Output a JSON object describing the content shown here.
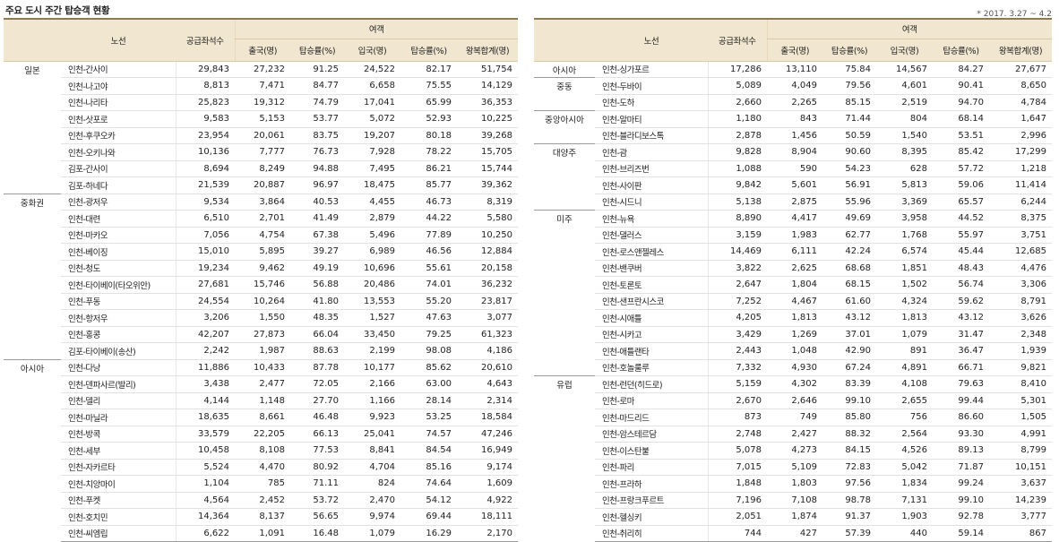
{
  "title": "주요 도시 주간 탑승객 현황",
  "period": "* 2017. 3.27 ~ 4.2",
  "headers": {
    "route": "노선",
    "capacity": "공급좌석수",
    "passengers": "여객",
    "out_pax": "출국(명)",
    "out_rate": "탑승률(%)",
    "in_pax": "입국(명)",
    "in_rate": "탑승률(%)",
    "total": "왕복합계(명)"
  },
  "left_groups": [
    {
      "region": "일본",
      "rows": [
        [
          "인천-간사이",
          "29,843",
          "27,232",
          "91.25",
          "24,522",
          "82.17",
          "51,754"
        ],
        [
          "인천-나고야",
          "8,813",
          "7,471",
          "84.77",
          "6,658",
          "75.55",
          "14,129"
        ],
        [
          "인천-나리타",
          "25,823",
          "19,312",
          "74.79",
          "17,041",
          "65.99",
          "36,353"
        ],
        [
          "인천-삿포로",
          "9,583",
          "5,153",
          "53.77",
          "5,072",
          "52.93",
          "10,225"
        ],
        [
          "인천-후쿠오카",
          "23,954",
          "20,061",
          "83.75",
          "19,207",
          "80.18",
          "39,268"
        ],
        [
          "인천-오키나와",
          "10,136",
          "7,777",
          "76.73",
          "7,928",
          "78.22",
          "15,705"
        ],
        [
          "김포-간사이",
          "8,694",
          "8,249",
          "94.88",
          "7,495",
          "86.21",
          "15,744"
        ],
        [
          "김포-하네다",
          "21,539",
          "20,887",
          "96.97",
          "18,475",
          "85.77",
          "39,362"
        ]
      ]
    },
    {
      "region": "중화권",
      "rows": [
        [
          "인천-광저우",
          "9,534",
          "3,864",
          "40.53",
          "4,455",
          "46.73",
          "8,319"
        ],
        [
          "인천-대련",
          "6,510",
          "2,701",
          "41.49",
          "2,879",
          "44.22",
          "5,580"
        ],
        [
          "인천-마카오",
          "7,056",
          "4,754",
          "67.38",
          "5,496",
          "77.89",
          "10,250"
        ],
        [
          "인천-베이징",
          "15,010",
          "5,895",
          "39.27",
          "6,989",
          "46.56",
          "12,884"
        ],
        [
          "인천-청도",
          "19,234",
          "9,462",
          "49.19",
          "10,696",
          "55.61",
          "20,158"
        ],
        [
          "인천-타이베이(타오위안)",
          "27,681",
          "15,746",
          "56.88",
          "20,486",
          "74.01",
          "36,232"
        ],
        [
          "인천-푸동",
          "24,554",
          "10,264",
          "41.80",
          "13,553",
          "55.20",
          "23,817"
        ],
        [
          "인천-항저우",
          "3,206",
          "1,550",
          "48.35",
          "1,527",
          "47.63",
          "3,077"
        ],
        [
          "인천-홍콩",
          "42,207",
          "27,873",
          "66.04",
          "33,450",
          "79.25",
          "61,323"
        ],
        [
          "김포-타이베이(송산)",
          "2,242",
          "1,987",
          "88.63",
          "2,199",
          "98.08",
          "4,186"
        ]
      ]
    },
    {
      "region": "아시아",
      "rows": [
        [
          "인천-다낭",
          "11,886",
          "10,433",
          "87.78",
          "10,177",
          "85.62",
          "20,610"
        ],
        [
          "인천-덴파사르(발리)",
          "3,438",
          "2,477",
          "72.05",
          "2,166",
          "63.00",
          "4,643"
        ],
        [
          "인천-델리",
          "4,144",
          "1,148",
          "27.70",
          "1,166",
          "28.14",
          "2,314"
        ],
        [
          "인천-마닐라",
          "18,635",
          "8,661",
          "46.48",
          "9,923",
          "53.25",
          "18,584"
        ],
        [
          "인천-방콕",
          "33,579",
          "22,205",
          "66.13",
          "25,041",
          "74.57",
          "47,246"
        ],
        [
          "인천-세부",
          "10,458",
          "8,108",
          "77.53",
          "8,841",
          "84.54",
          "16,949"
        ],
        [
          "인천-자카르타",
          "5,524",
          "4,470",
          "80.92",
          "4,704",
          "85.16",
          "9,174"
        ],
        [
          "인천-치앙마이",
          "1,104",
          "785",
          "71.11",
          "824",
          "74.64",
          "1,609"
        ],
        [
          "인천-푸켓",
          "4,564",
          "2,452",
          "53.72",
          "2,470",
          "54.12",
          "4,922"
        ],
        [
          "인천-호치민",
          "14,364",
          "8,137",
          "56.65",
          "9,974",
          "69.44",
          "18,111"
        ],
        [
          "인천-씨엠립",
          "6,622",
          "1,091",
          "16.48",
          "1,079",
          "16.29",
          "2,170"
        ]
      ]
    }
  ],
  "right_groups": [
    {
      "region": "아시아",
      "rows": [
        [
          "인천-싱가포르",
          "17,286",
          "13,110",
          "75.84",
          "14,567",
          "84.27",
          "27,677"
        ]
      ]
    },
    {
      "region": "중동",
      "rows": [
        [
          "인천-두바이",
          "5,089",
          "4,049",
          "79.56",
          "4,601",
          "90.41",
          "8,650"
        ],
        [
          "인천-도하",
          "2,660",
          "2,265",
          "85.15",
          "2,519",
          "94.70",
          "4,784"
        ]
      ]
    },
    {
      "region": "중앙아시아",
      "rows": [
        [
          "인천-알마티",
          "1,180",
          "843",
          "71.44",
          "804",
          "68.14",
          "1,647"
        ],
        [
          "인천-블라디보스톡",
          "2,878",
          "1,456",
          "50.59",
          "1,540",
          "53.51",
          "2,996"
        ]
      ]
    },
    {
      "region": "대양주",
      "rows": [
        [
          "인천-괌",
          "9,828",
          "8,904",
          "90.60",
          "8,395",
          "85.42",
          "17,299"
        ],
        [
          "인천-브리즈번",
          "1,088",
          "590",
          "54.23",
          "628",
          "57.72",
          "1,218"
        ],
        [
          "인천-사이판",
          "9,842",
          "5,601",
          "56.91",
          "5,813",
          "59.06",
          "11,414"
        ],
        [
          "인천-시드니",
          "5,138",
          "2,875",
          "55.96",
          "3,369",
          "65.57",
          "6,244"
        ]
      ]
    },
    {
      "region": "미주",
      "rows": [
        [
          "인천-뉴욕",
          "8,890",
          "4,417",
          "49.69",
          "3,958",
          "44.52",
          "8,375"
        ],
        [
          "인천-댈러스",
          "3,159",
          "1,983",
          "62.77",
          "1,768",
          "55.97",
          "3,751"
        ],
        [
          "인천-로스앤젤레스",
          "14,469",
          "6,111",
          "42.24",
          "6,574",
          "45.44",
          "12,685"
        ],
        [
          "인천-밴쿠버",
          "3,822",
          "2,625",
          "68.68",
          "1,851",
          "48.43",
          "4,476"
        ],
        [
          "인천-토론토",
          "2,647",
          "1,804",
          "68.15",
          "1,502",
          "56.74",
          "3,306"
        ],
        [
          "인천-샌프란시스코",
          "7,252",
          "4,467",
          "61.60",
          "4,324",
          "59.62",
          "8,791"
        ],
        [
          "인천-시애틀",
          "4,205",
          "1,813",
          "43.12",
          "1,813",
          "43.12",
          "3,626"
        ],
        [
          "인천-시카고",
          "3,429",
          "1,269",
          "37.01",
          "1,079",
          "31.47",
          "2,348"
        ],
        [
          "인천-애틀랜타",
          "2,443",
          "1,048",
          "42.90",
          "891",
          "36.47",
          "1,939"
        ],
        [
          "인천-호놀룰루",
          "7,332",
          "4,930",
          "67.24",
          "4,891",
          "66.71",
          "9,821"
        ]
      ]
    },
    {
      "region": "유럽",
      "rows": [
        [
          "인천-런던(히드로)",
          "5,159",
          "4,302",
          "83.39",
          "4,108",
          "79.63",
          "8,410"
        ],
        [
          "인천-로마",
          "2,670",
          "2,646",
          "99.10",
          "2,655",
          "99.44",
          "5,301"
        ],
        [
          "인천-마드리드",
          "873",
          "749",
          "85.80",
          "756",
          "86.60",
          "1,505"
        ],
        [
          "인천-암스테르담",
          "2,748",
          "2,427",
          "88.32",
          "2,564",
          "93.30",
          "4,991"
        ],
        [
          "인천-이스탄불",
          "5,078",
          "4,273",
          "84.15",
          "4,526",
          "89.13",
          "8,799"
        ],
        [
          "인천-파리",
          "7,015",
          "5,109",
          "72.83",
          "5,042",
          "71.87",
          "10,151"
        ],
        [
          "인천-프라하",
          "1,848",
          "1,803",
          "97.56",
          "1,834",
          "99.24",
          "3,637"
        ],
        [
          "인천-프랑크푸르트",
          "7,196",
          "7,108",
          "98.78",
          "7,131",
          "99.10",
          "14,239"
        ],
        [
          "인천-헬싱키",
          "2,051",
          "1,874",
          "91.37",
          "1,903",
          "92.78",
          "3,777"
        ],
        [
          "인천-취리히",
          "744",
          "427",
          "57.39",
          "440",
          "59.14",
          "867"
        ]
      ]
    }
  ]
}
